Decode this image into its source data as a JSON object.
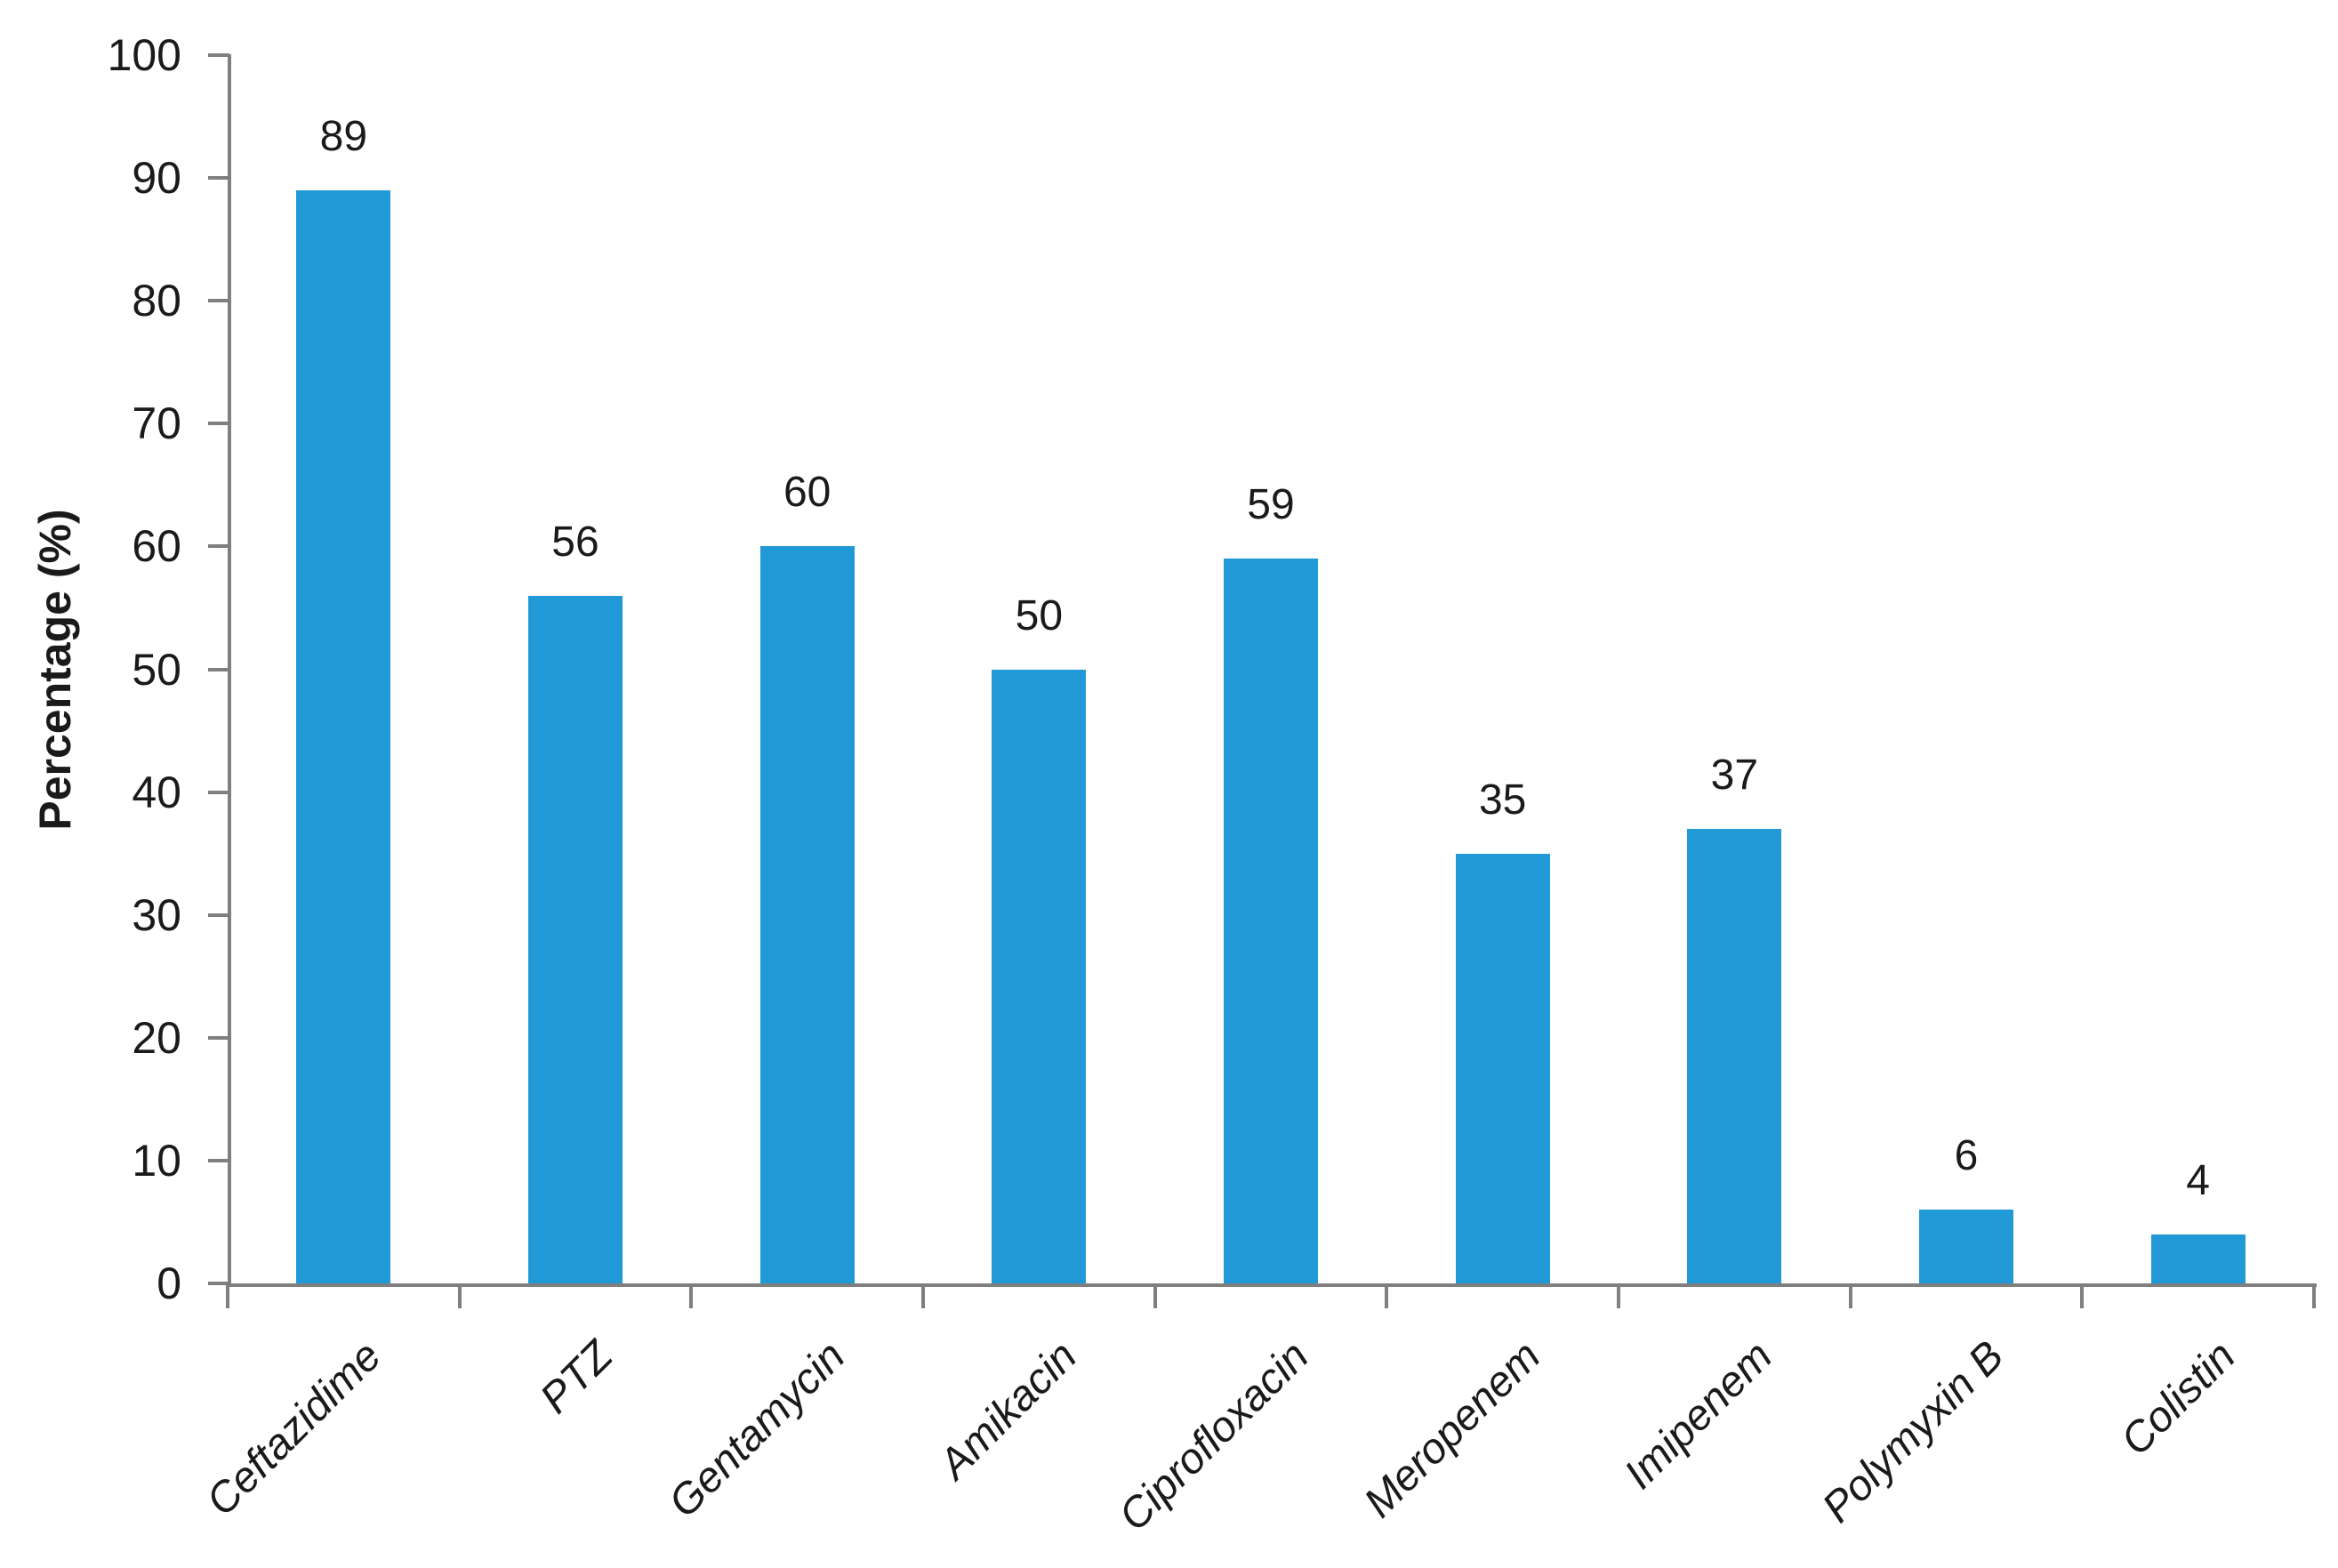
{
  "chart_data": {
    "type": "bar",
    "title": "",
    "categories": [
      "Ceftazidime",
      "PTZ",
      "Gentamycin",
      "Amikacin",
      "Ciprofloxacin",
      "Meropenem",
      "Imipenem",
      "Polymyxin B",
      "Colistin"
    ],
    "values": [
      89,
      56,
      60,
      50,
      59,
      35,
      37,
      6,
      4
    ],
    "data_labels": [
      "89",
      "56",
      "60",
      "50",
      "59",
      "35",
      "37",
      "6",
      "4"
    ],
    "xlabel": "",
    "ylabel": "Percentage (%)",
    "ylim": [
      0,
      100
    ],
    "ytick_step": 10,
    "yticks": [
      0,
      10,
      20,
      30,
      40,
      50,
      60,
      70,
      80,
      90,
      100
    ],
    "grid": false,
    "legend_position": "none",
    "colors": {
      "bar": "#2199D6",
      "axis": "#7F7F7F",
      "text": "#1a1a1a",
      "background": "#ffffff"
    }
  }
}
